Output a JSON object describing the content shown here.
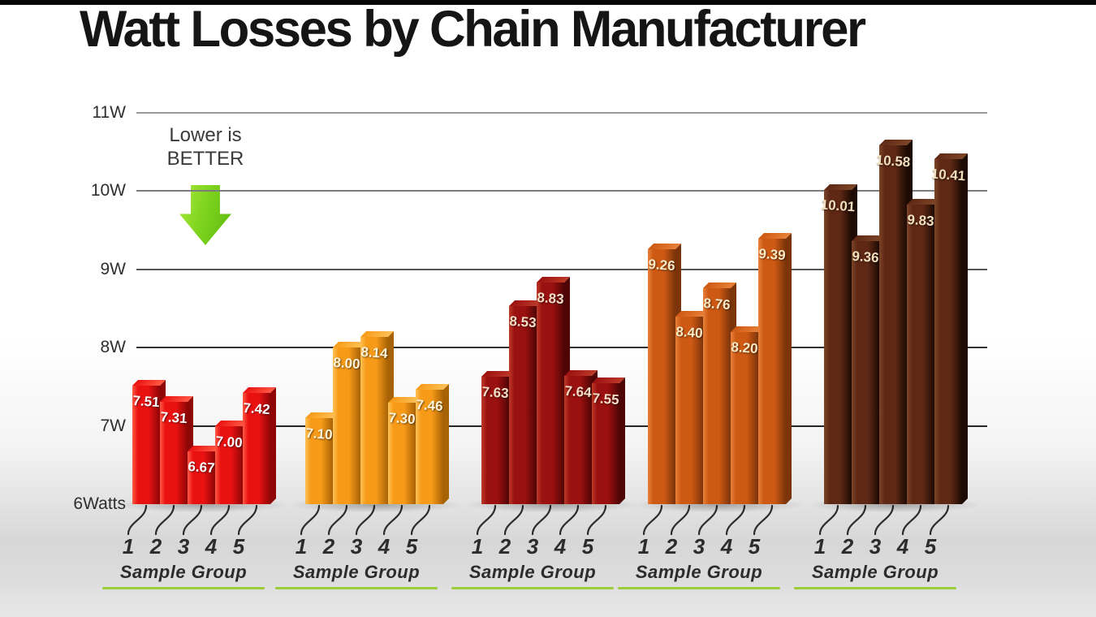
{
  "title": "Watt Losses by Chain Manufacturer",
  "annotation": {
    "line1": "Lower is",
    "line2": "BETTER"
  },
  "y_axis": {
    "tick_labels": [
      "11W",
      "10W",
      "9W",
      "8W",
      "7W",
      "6Watts"
    ],
    "tick_values": [
      11,
      10,
      9,
      8,
      7,
      6
    ]
  },
  "x_axis": {
    "sample_numbers": [
      "1",
      "2",
      "3",
      "4",
      "5"
    ],
    "group_caption": "Sample Group"
  },
  "chart_data": {
    "type": "bar",
    "title": "Watt Losses by Chain Manufacturer",
    "ylabel": "Watts",
    "ylim": [
      6,
      11
    ],
    "grid": true,
    "legend_position": "none",
    "annotations": [
      "Lower is BETTER"
    ],
    "categories": [
      "1",
      "2",
      "3",
      "4",
      "5"
    ],
    "group_caption": "Sample Group",
    "series": [
      {
        "id": "group-1",
        "color": "#ea1111",
        "color_light": "#ff5a45",
        "color_dark": "#8f0606",
        "label_color": "#ffffff",
        "values": [
          7.51,
          7.31,
          6.67,
          7.0,
          7.42
        ]
      },
      {
        "id": "group-2",
        "color": "#f79a18",
        "color_light": "#ffc257",
        "color_dark": "#a86206",
        "label_color": "#fdf4da",
        "values": [
          7.1,
          8.0,
          8.14,
          7.3,
          7.46
        ]
      },
      {
        "id": "group-3",
        "color": "#9b1010",
        "color_light": "#bd3a28",
        "color_dark": "#4f0505",
        "label_color": "#f3ddc6",
        "values": [
          7.63,
          8.53,
          8.83,
          7.64,
          7.55
        ]
      },
      {
        "id": "group-4",
        "color": "#cd5913",
        "color_light": "#e8813a",
        "color_dark": "#7c340a",
        "label_color": "#f8e8c5",
        "values": [
          9.26,
          8.4,
          8.76,
          8.2,
          9.39
        ]
      },
      {
        "id": "group-5",
        "color": "#5f2815",
        "color_light": "#7d4527",
        "color_dark": "#1d0a04",
        "label_color": "#f1dfbe",
        "values": [
          10.01,
          9.36,
          10.58,
          9.83,
          10.41
        ]
      }
    ]
  },
  "style": {
    "underline_green": "#9ccc3c",
    "arrow_green": "#7fd41f",
    "grid_color_dark": "#2b2b2b",
    "grid_color_light": "#9a9a9a",
    "tick_line_color": "#2c2c2c",
    "background_floor": "#d7d7d7"
  }
}
